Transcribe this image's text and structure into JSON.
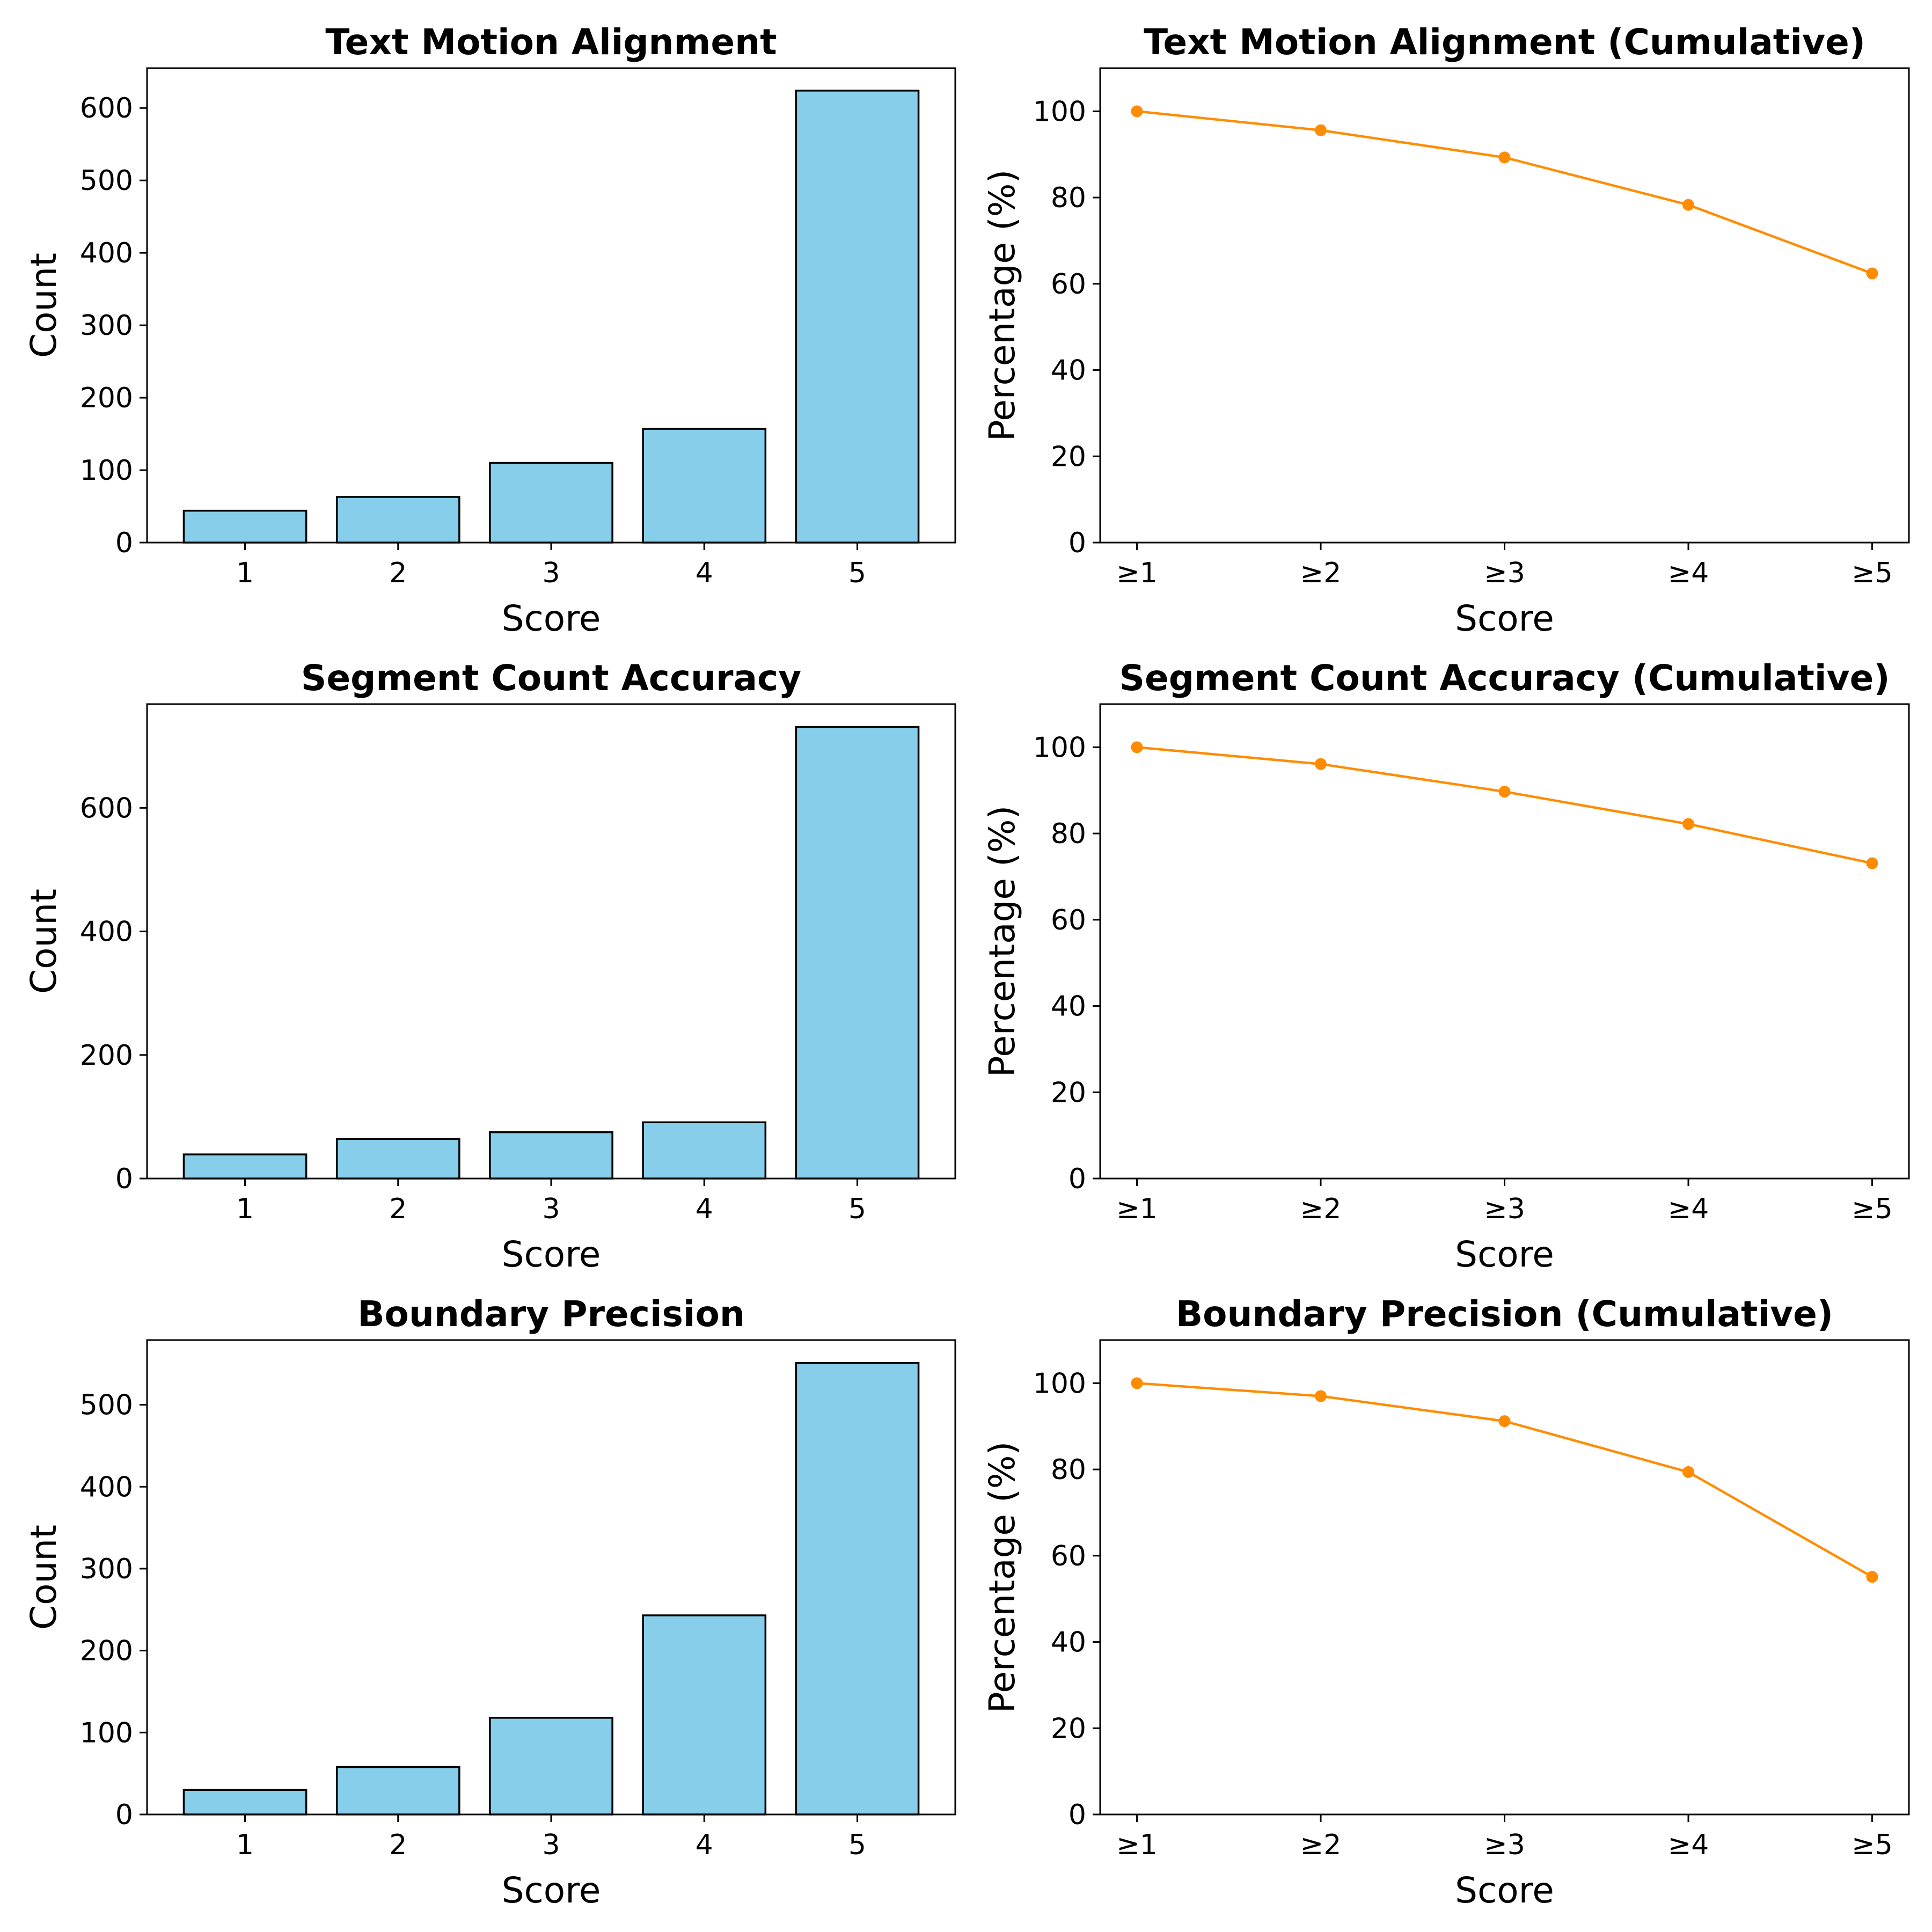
{
  "chart_data": [
    {
      "type": "bar",
      "title": "Text Motion Alignment",
      "xlabel": "Score",
      "ylabel": "Count",
      "categories": [
        "1",
        "2",
        "3",
        "4",
        "5"
      ],
      "values": [
        44,
        63,
        110,
        157,
        624
      ],
      "ylim": [
        0,
        655
      ],
      "yticks": [
        0,
        100,
        200,
        300,
        400,
        500,
        600
      ],
      "bar_color": "#87ceeb"
    },
    {
      "type": "line",
      "title": "Text Motion Alignment (Cumulative)",
      "xlabel": "Score",
      "ylabel": "Percentage (%)",
      "categories": [
        "≥1",
        "≥2",
        "≥3",
        "≥4",
        "≥5"
      ],
      "values": [
        100,
        95.6,
        89.3,
        78.3,
        62.4
      ],
      "ylim": [
        0,
        110
      ],
      "yticks": [
        0,
        20,
        40,
        60,
        80,
        100
      ],
      "line_color": "#ff8c00"
    },
    {
      "type": "bar",
      "title": "Segment Count Accuracy",
      "xlabel": "Score",
      "ylabel": "Count",
      "categories": [
        "1",
        "2",
        "3",
        "4",
        "5"
      ],
      "values": [
        39,
        64,
        75,
        91,
        731
      ],
      "ylim": [
        0,
        768
      ],
      "yticks": [
        0,
        200,
        400,
        600
      ],
      "bar_color": "#87ceeb"
    },
    {
      "type": "line",
      "title": "Segment Count Accuracy (Cumulative)",
      "xlabel": "Score",
      "ylabel": "Percentage (%)",
      "categories": [
        "≥1",
        "≥2",
        "≥3",
        "≥4",
        "≥5"
      ],
      "values": [
        100,
        96.1,
        89.7,
        82.2,
        73.1
      ],
      "ylim": [
        0,
        110
      ],
      "yticks": [
        0,
        20,
        40,
        60,
        80,
        100
      ],
      "line_color": "#ff8c00"
    },
    {
      "type": "bar",
      "title": "Boundary Precision",
      "xlabel": "Score",
      "ylabel": "Count",
      "categories": [
        "1",
        "2",
        "3",
        "4",
        "5"
      ],
      "values": [
        30,
        58,
        118,
        243,
        551
      ],
      "ylim": [
        0,
        579
      ],
      "yticks": [
        0,
        100,
        200,
        300,
        400,
        500
      ],
      "bar_color": "#87ceeb"
    },
    {
      "type": "line",
      "title": "Boundary Precision (Cumulative)",
      "xlabel": "Score",
      "ylabel": "Percentage (%)",
      "categories": [
        "≥1",
        "≥2",
        "≥3",
        "≥4",
        "≥5"
      ],
      "values": [
        100,
        97,
        91.2,
        79.4,
        55.1
      ],
      "ylim": [
        0,
        110
      ],
      "yticks": [
        0,
        20,
        40,
        60,
        80,
        100
      ],
      "line_color": "#ff8c00"
    }
  ]
}
